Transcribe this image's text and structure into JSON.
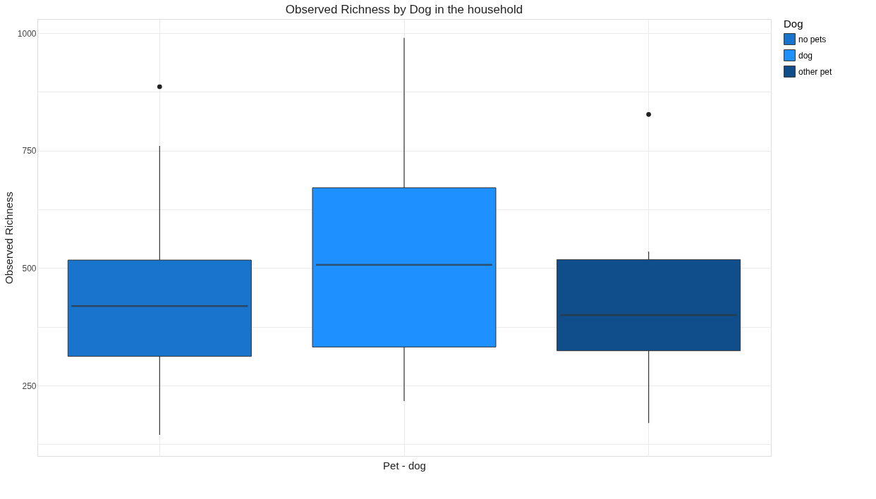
{
  "chart_data": {
    "type": "box",
    "title": "Observed Richness by Dog in the household",
    "xlabel": "Pet - dog",
    "ylabel": "Observed Richness",
    "legend_title": "Dog",
    "categories": [
      null,
      null,
      null
    ],
    "series": [
      {
        "name": "no pets",
        "color": "#1874cd",
        "boxes": [
          {
            "low": 145,
            "q1": 312,
            "median": 419,
            "q3": 517,
            "high": 760,
            "outliers": [
              886
            ]
          },
          null,
          null
        ]
      },
      {
        "name": "dog",
        "color": "#1e90ff",
        "boxes": [
          null,
          {
            "low": 217,
            "q1": 332,
            "median": 507,
            "q3": 671,
            "high": 990
          },
          null
        ]
      },
      {
        "name": "other pet",
        "color": "#104e8b",
        "boxes": [
          null,
          null,
          {
            "low": 170,
            "q1": 324,
            "median": 400,
            "q3": 518,
            "high": 535,
            "outliers": [
              827
            ]
          }
        ]
      }
    ],
    "ylim": [
      100,
      1030
    ],
    "yticks": [
      {
        "value": 125,
        "label": null
      },
      250,
      {
        "value": 375,
        "label": null
      },
      500,
      {
        "value": 625,
        "label": null
      },
      750,
      {
        "value": 875,
        "label": null
      },
      1000
    ],
    "grid": true,
    "legend": "right"
  }
}
